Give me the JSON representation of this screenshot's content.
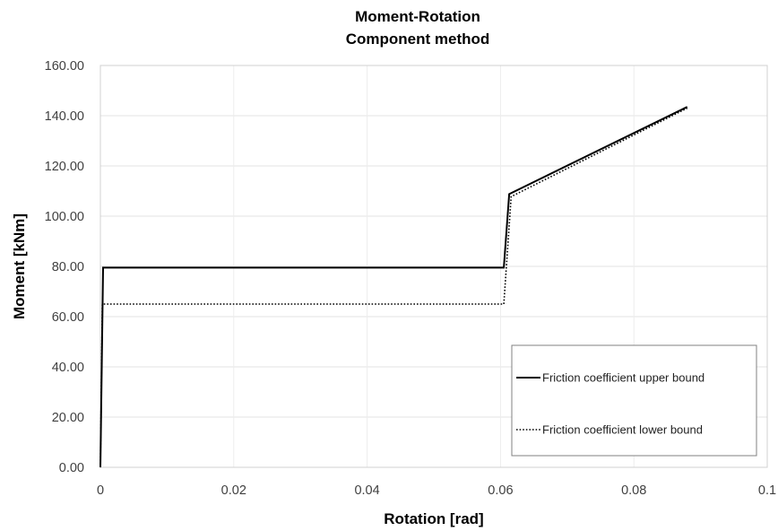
{
  "chart_data": {
    "type": "line",
    "title": "Moment-Rotation",
    "subtitle": "Component method",
    "xlabel": "Rotation [rad]",
    "ylabel": "Moment [kNm]",
    "xlim": [
      0,
      0.1
    ],
    "ylim": [
      0,
      160
    ],
    "x_ticks": [
      "0",
      "0.02",
      "0.04",
      "0.06",
      "0.08",
      "0.1"
    ],
    "x_tick_values": [
      0,
      0.02,
      0.04,
      0.06,
      0.08,
      0.1
    ],
    "y_ticks": [
      "0.00",
      "20.00",
      "40.00",
      "60.00",
      "80.00",
      "100.00",
      "120.00",
      "140.00",
      "160.00"
    ],
    "y_tick_values": [
      0,
      20,
      40,
      60,
      80,
      100,
      120,
      140,
      160
    ],
    "grid": true,
    "legend_position": "bottom-right",
    "series": [
      {
        "name": "Friction coefficient upper bound",
        "style": "solid",
        "color": "#000000",
        "points": [
          [
            0,
            0
          ],
          [
            0.0004,
            79.5
          ],
          [
            0.0605,
            79.5
          ],
          [
            0.0613,
            108.8
          ],
          [
            0.088,
            143.5
          ]
        ]
      },
      {
        "name": "Friction coefficient lower bound",
        "style": "dotted",
        "color": "#000000",
        "points": [
          [
            0,
            0
          ],
          [
            0.0003,
            65
          ],
          [
            0.0605,
            65
          ],
          [
            0.0616,
            107.8
          ],
          [
            0.088,
            143
          ]
        ]
      }
    ]
  }
}
